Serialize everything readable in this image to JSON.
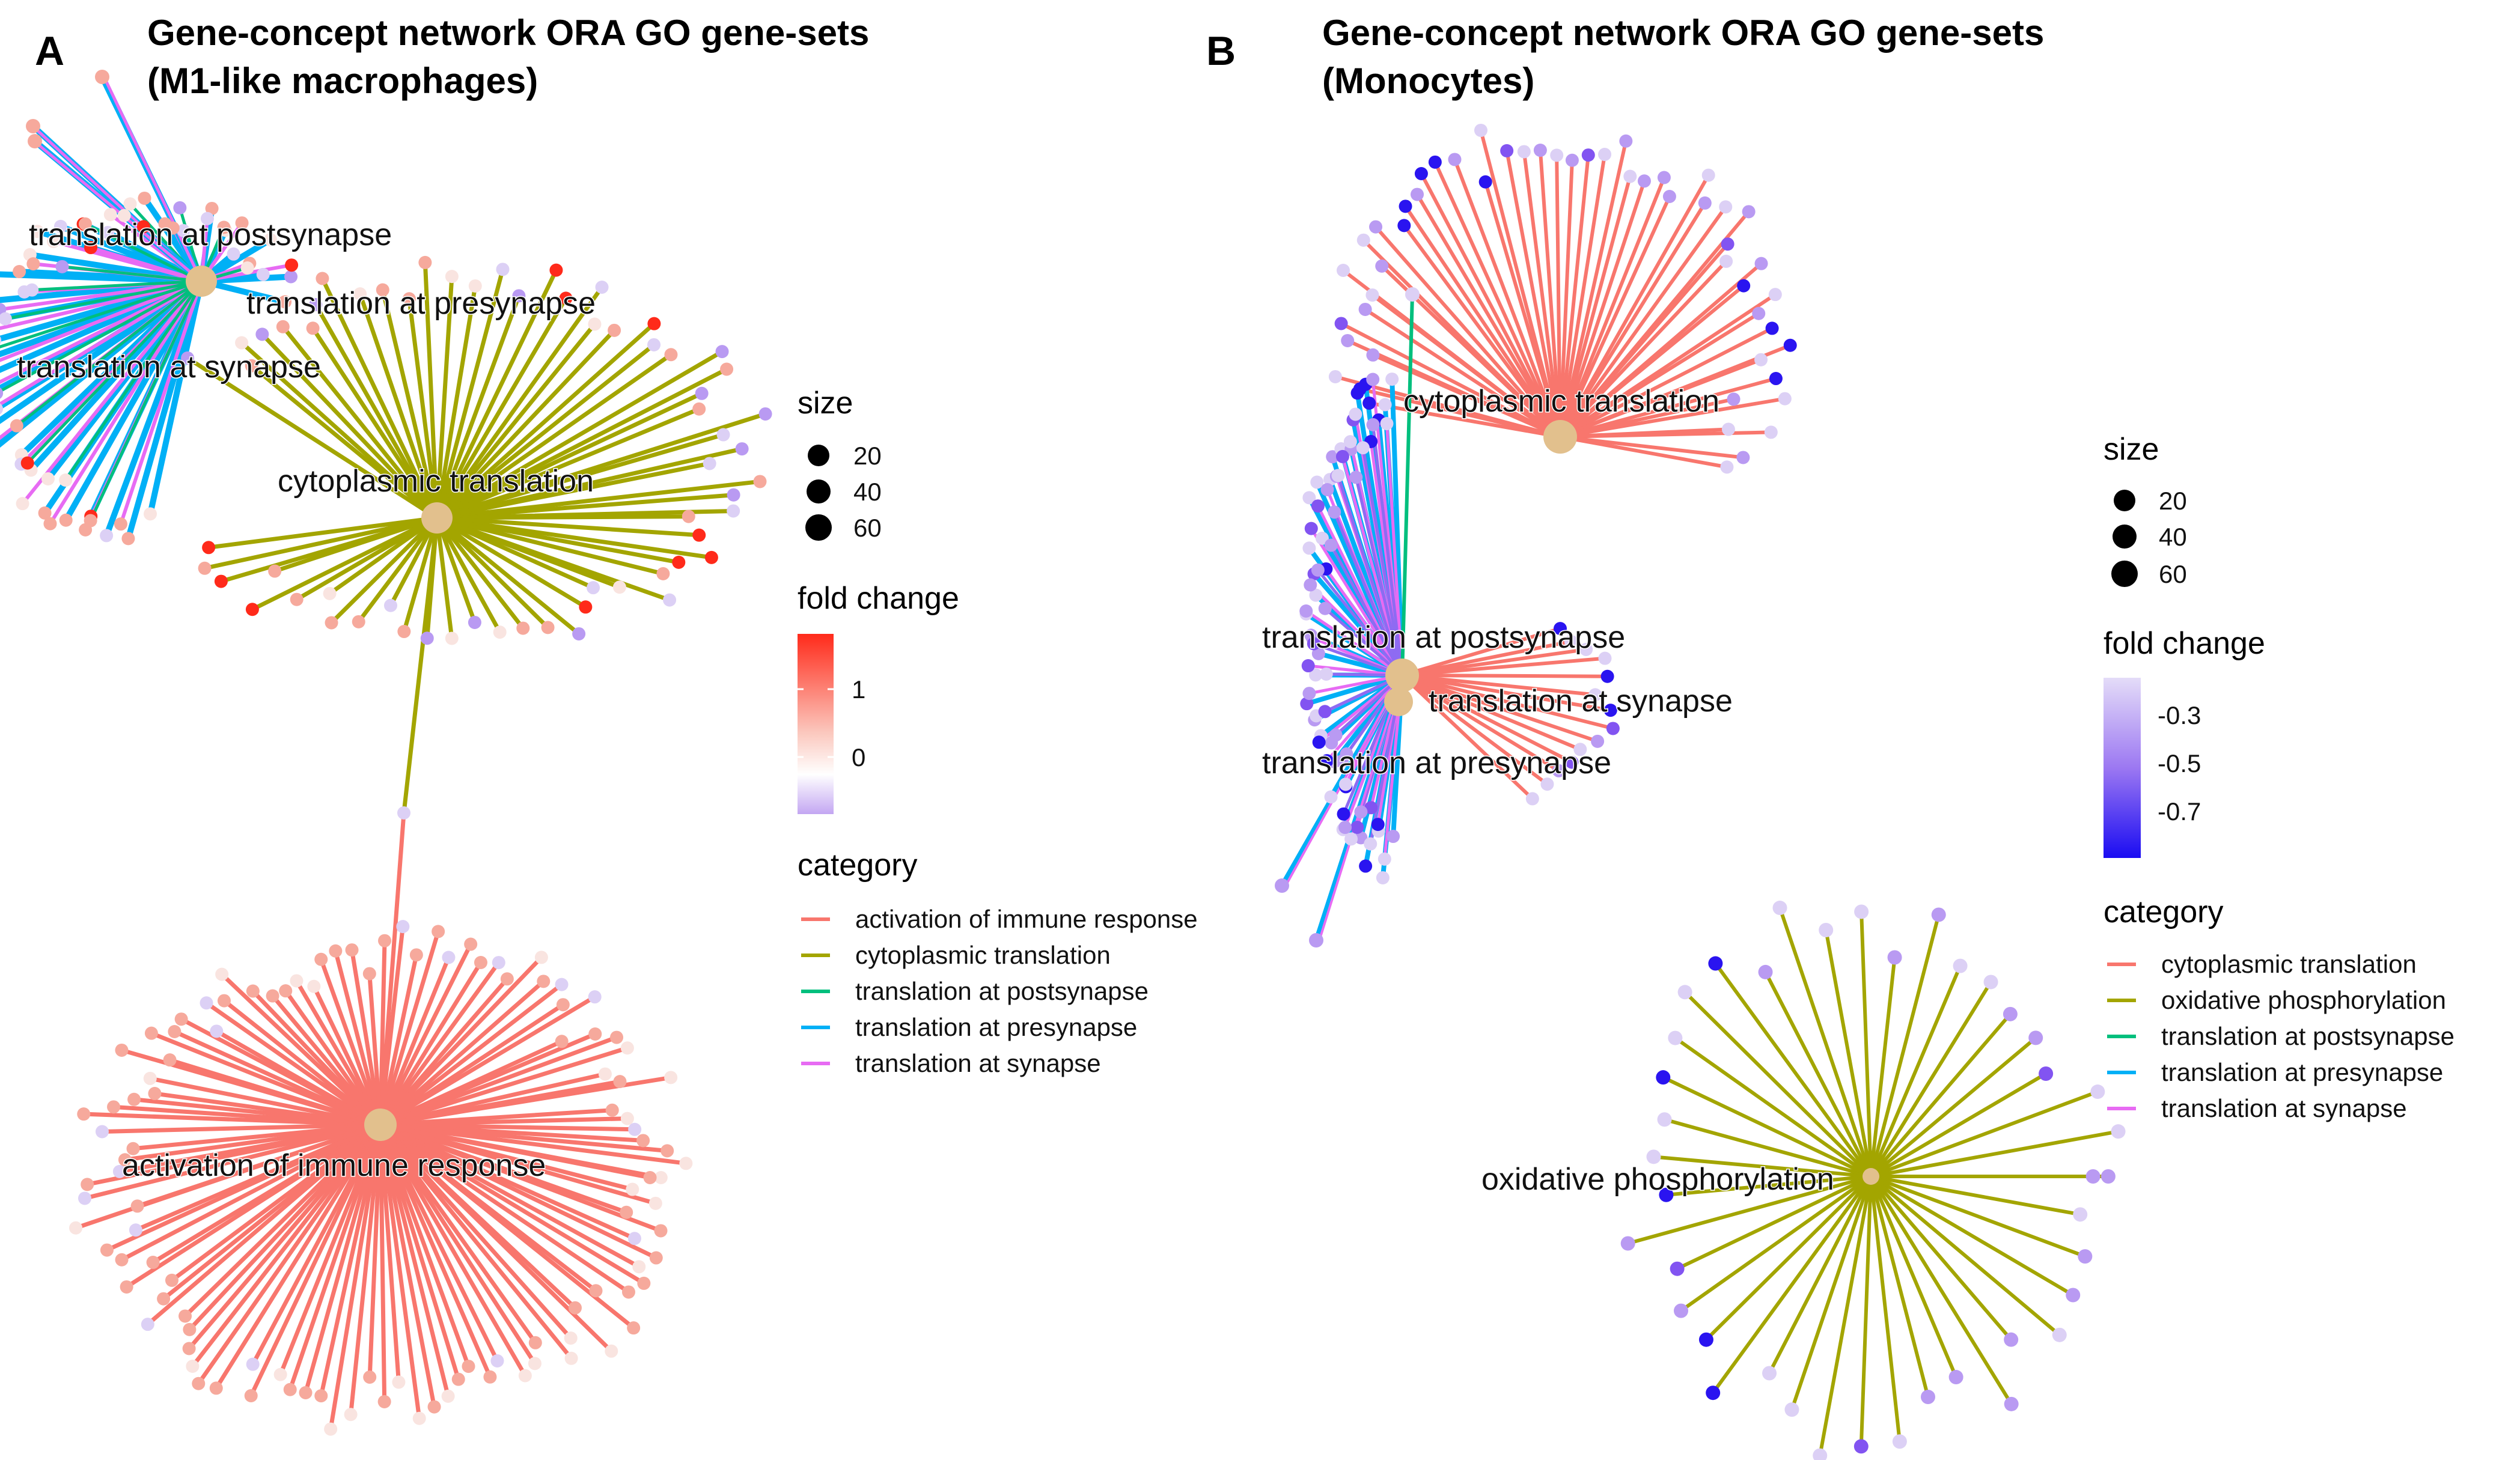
{
  "panels": [
    {
      "letter": "A",
      "title_line1": "Gene-concept network ORA GO gene-sets",
      "title_line2": "(M1-like macrophages)",
      "nodes": {
        "postsynapse": "translation at postsynapse",
        "presynapse": "translation at presynapse",
        "synapse": "translation at synapse",
        "cytoplasmic": "cytoplasmic translation",
        "immune": "activation of immune response"
      },
      "legend": {
        "size_title": "size",
        "size_values": [
          "20",
          "40",
          "60"
        ],
        "fold_title": "fold change",
        "fold_ticks": [
          "1",
          "0"
        ],
        "category_title": "category",
        "categories": [
          {
            "label": "activation of immune response",
            "color": "#F8766D"
          },
          {
            "label": "cytoplasmic translation",
            "color": "#A3A500"
          },
          {
            "label": "translation at postsynapse",
            "color": "#00BF7D"
          },
          {
            "label": "translation at presynapse",
            "color": "#00B0F6"
          },
          {
            "label": "translation at synapse",
            "color": "#E76BF3"
          }
        ]
      }
    },
    {
      "letter": "B",
      "title_line1": "Gene-concept network ORA GO gene-sets",
      "title_line2": "(Monocytes)",
      "nodes": {
        "cytoplasmic": "cytoplasmic translation",
        "postsynapse": "translation at postsynapse",
        "synapse": "translation at synapse",
        "presynapse": "translation at presynapse",
        "oxphos": "oxidative phosphorylation"
      },
      "legend": {
        "size_title": "size",
        "size_values": [
          "20",
          "40",
          "60"
        ],
        "fold_title": "fold change",
        "fold_ticks": [
          "-0.3",
          "-0.5",
          "-0.7"
        ],
        "category_title": "category",
        "categories": [
          {
            "label": "cytoplasmic translation",
            "color": "#F8766D"
          },
          {
            "label": "oxidative phosphorylation",
            "color": "#A3A500"
          },
          {
            "label": "translation at postsynapse",
            "color": "#00BF7D"
          },
          {
            "label": "translation at presynapse",
            "color": "#00B0F6"
          },
          {
            "label": "translation at synapse",
            "color": "#E76BF3"
          }
        ]
      }
    }
  ],
  "colors": {
    "hub": "#E2C08D",
    "gene_red_high": "#FF2A1A",
    "gene_pink": "#F6A99C",
    "gene_white": "#F9E4E0",
    "gene_lavender_light": "#DCD0F5",
    "gene_lavender": "#B99AF2",
    "gene_purple": "#8254F1",
    "gene_blue": "#2A14F0"
  }
}
